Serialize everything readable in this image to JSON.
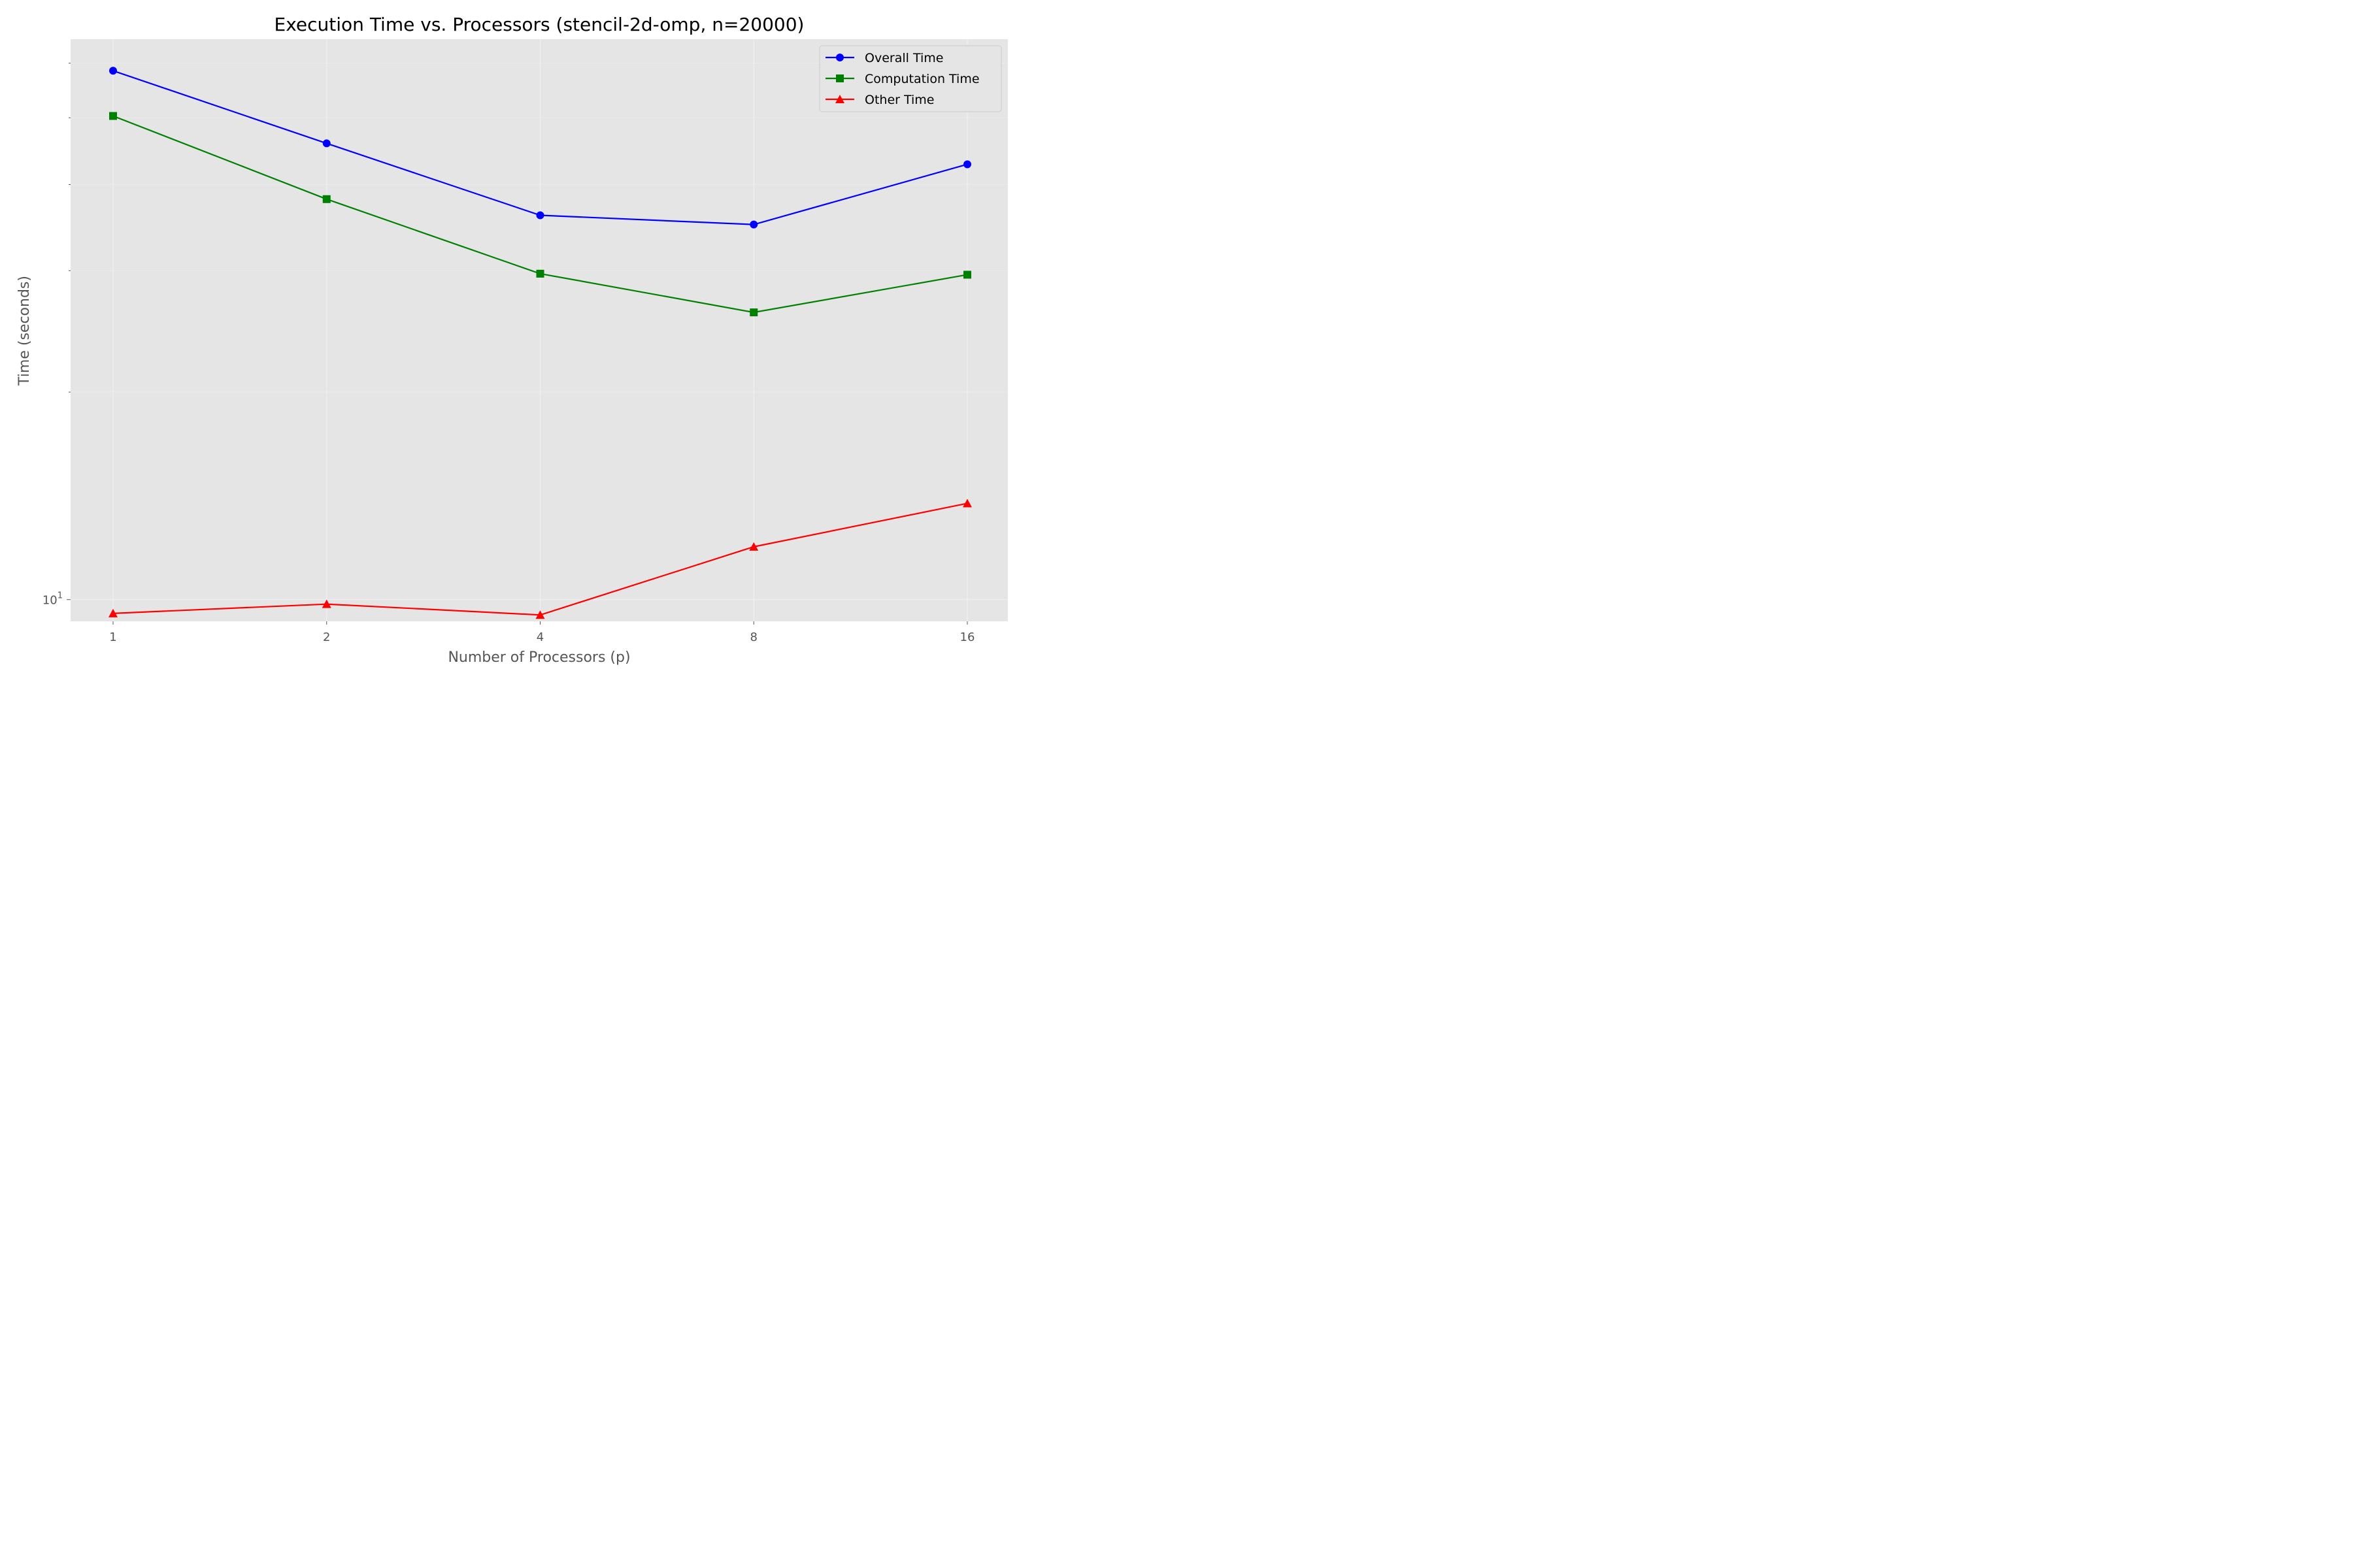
{
  "chart_data": {
    "type": "line",
    "title": "Execution Time vs. Processors (stencil-2d-omp, n=20000)",
    "xlabel": "Number of Processors (p)",
    "ylabel": "Time (seconds)",
    "x_scale": "log2",
    "y_scale": "log10",
    "x": [
      1,
      2,
      4,
      8,
      16
    ],
    "x_tick_labels": [
      "1",
      "2",
      "4",
      "8",
      "16"
    ],
    "y_tick_labels": [
      {
        "value": 10,
        "base": "10",
        "exponent": "1"
      }
    ],
    "ylim": [
      9.3,
      65
    ],
    "grid": true,
    "legend_position": "top-right",
    "series": [
      {
        "name": "Overall Time",
        "color": "#0000ff",
        "marker": "circle",
        "values": [
          58.5,
          45.9,
          36.1,
          35.0,
          42.8
        ]
      },
      {
        "name": "Computation Time",
        "color": "#008000",
        "marker": "square",
        "values": [
          50.3,
          38.1,
          29.7,
          26.1,
          29.6
        ]
      },
      {
        "name": "Other Time",
        "color": "#ff0000",
        "marker": "triangle",
        "values": [
          9.55,
          9.85,
          9.5,
          11.93,
          13.79
        ]
      }
    ]
  }
}
